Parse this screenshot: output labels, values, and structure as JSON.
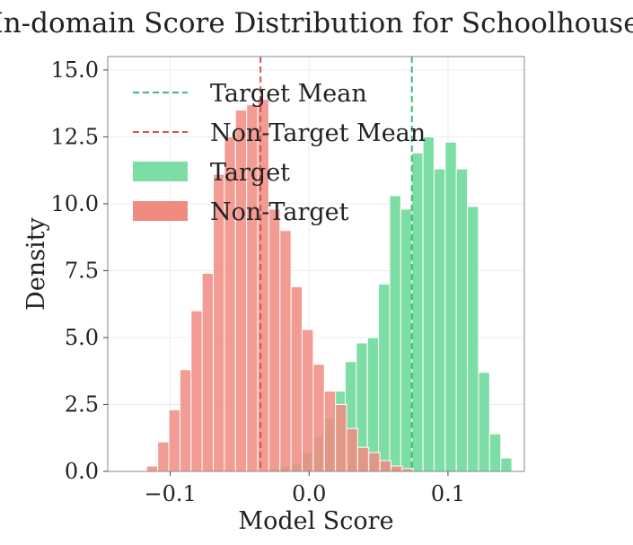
{
  "chart_data": {
    "type": "histogram",
    "title": "In-domain Score Distribution for Schoolhouse",
    "xlabel": "Model Score",
    "ylabel": "Density",
    "xlim": [
      -0.145,
      0.155
    ],
    "ylim": [
      0,
      15.5
    ],
    "xticks": [
      -0.1,
      0.0,
      0.1
    ],
    "xtick_labels": [
      "−0.1",
      "0.0",
      "0.1"
    ],
    "yticks": [
      0.0,
      2.5,
      5.0,
      7.5,
      10.0,
      12.5,
      15.0
    ],
    "ytick_labels": [
      "0.0",
      "2.5",
      "5.0",
      "7.5",
      "10.0",
      "12.5",
      "15.0"
    ],
    "grid": true,
    "legend_position": "upper-left",
    "colors": {
      "target": "#7ddea5",
      "non_target": "#f08b80",
      "target_mean": "#3dbb78",
      "non_target_mean": "#d9534f",
      "overlap": "#b98d72"
    },
    "series": [
      {
        "name": "Target",
        "color": "#7ddea5",
        "bins": [
          {
            "x0": -0.03,
            "x1": -0.022,
            "y": 0.1
          },
          {
            "x0": -0.022,
            "x1": -0.014,
            "y": 0.2
          },
          {
            "x0": -0.014,
            "x1": -0.006,
            "y": 0.3
          },
          {
            "x0": -0.006,
            "x1": 0.002,
            "y": 0.7
          },
          {
            "x0": 0.002,
            "x1": 0.01,
            "y": 1.3
          },
          {
            "x0": 0.01,
            "x1": 0.018,
            "y": 2.0
          },
          {
            "x0": 0.018,
            "x1": 0.026,
            "y": 3.0
          },
          {
            "x0": 0.026,
            "x1": 0.034,
            "y": 4.1
          },
          {
            "x0": 0.034,
            "x1": 0.042,
            "y": 4.8
          },
          {
            "x0": 0.042,
            "x1": 0.05,
            "y": 5.0
          },
          {
            "x0": 0.05,
            "x1": 0.058,
            "y": 7.0
          },
          {
            "x0": 0.058,
            "x1": 0.066,
            "y": 10.3
          },
          {
            "x0": 0.066,
            "x1": 0.074,
            "y": 9.8
          },
          {
            "x0": 0.074,
            "x1": 0.082,
            "y": 11.9
          },
          {
            "x0": 0.082,
            "x1": 0.09,
            "y": 12.5
          },
          {
            "x0": 0.09,
            "x1": 0.098,
            "y": 11.3
          },
          {
            "x0": 0.098,
            "x1": 0.106,
            "y": 12.3
          },
          {
            "x0": 0.106,
            "x1": 0.114,
            "y": 11.3
          },
          {
            "x0": 0.114,
            "x1": 0.122,
            "y": 9.9
          },
          {
            "x0": 0.122,
            "x1": 0.13,
            "y": 3.7
          },
          {
            "x0": 0.13,
            "x1": 0.138,
            "y": 1.4
          },
          {
            "x0": 0.138,
            "x1": 0.146,
            "y": 0.5
          }
        ]
      },
      {
        "name": "Non-Target",
        "color": "#f08b80",
        "bins": [
          {
            "x0": -0.125,
            "x1": -0.117,
            "y": 0.0
          },
          {
            "x0": -0.117,
            "x1": -0.109,
            "y": 0.2
          },
          {
            "x0": -0.109,
            "x1": -0.101,
            "y": 1.1
          },
          {
            "x0": -0.101,
            "x1": -0.093,
            "y": 2.3
          },
          {
            "x0": -0.093,
            "x1": -0.085,
            "y": 3.8
          },
          {
            "x0": -0.085,
            "x1": -0.077,
            "y": 6.0
          },
          {
            "x0": -0.077,
            "x1": -0.069,
            "y": 7.4
          },
          {
            "x0": -0.069,
            "x1": -0.061,
            "y": 11.1
          },
          {
            "x0": -0.061,
            "x1": -0.053,
            "y": 12.5
          },
          {
            "x0": -0.053,
            "x1": -0.045,
            "y": 13.5
          },
          {
            "x0": -0.045,
            "x1": -0.037,
            "y": 13.7
          },
          {
            "x0": -0.037,
            "x1": -0.029,
            "y": 13.9
          },
          {
            "x0": -0.029,
            "x1": -0.021,
            "y": 9.8
          },
          {
            "x0": -0.021,
            "x1": -0.013,
            "y": 9.0
          },
          {
            "x0": -0.013,
            "x1": -0.005,
            "y": 6.9
          },
          {
            "x0": -0.005,
            "x1": 0.003,
            "y": 5.3
          },
          {
            "x0": 0.003,
            "x1": 0.011,
            "y": 4.0
          },
          {
            "x0": 0.011,
            "x1": 0.019,
            "y": 3.0
          },
          {
            "x0": 0.019,
            "x1": 0.027,
            "y": 2.5
          },
          {
            "x0": 0.027,
            "x1": 0.035,
            "y": 1.6
          },
          {
            "x0": 0.035,
            "x1": 0.043,
            "y": 0.9
          },
          {
            "x0": 0.043,
            "x1": 0.051,
            "y": 0.7
          },
          {
            "x0": 0.051,
            "x1": 0.059,
            "y": 0.4
          },
          {
            "x0": 0.059,
            "x1": 0.067,
            "y": 0.2
          },
          {
            "x0": 0.067,
            "x1": 0.075,
            "y": 0.1
          }
        ]
      }
    ],
    "reference_lines": [
      {
        "name": "Target Mean",
        "x": 0.074,
        "color": "#3dbb78",
        "style": "dashed"
      },
      {
        "name": "Non-Target Mean",
        "x": -0.035,
        "color": "#d9534f",
        "style": "dashed"
      }
    ],
    "legend": [
      {
        "label": "Target Mean",
        "kind": "line",
        "color": "#3dbb78"
      },
      {
        "label": "Non-Target Mean",
        "kind": "line",
        "color": "#d9534f"
      },
      {
        "label": "Target",
        "kind": "patch",
        "color": "#7ddea5"
      },
      {
        "label": "Non-Target",
        "kind": "patch",
        "color": "#f08b80"
      }
    ]
  }
}
